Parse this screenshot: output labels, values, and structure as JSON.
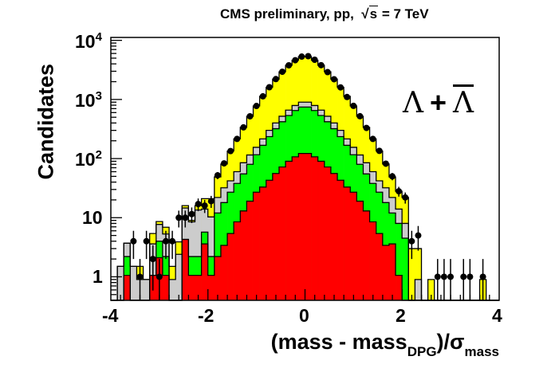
{
  "chart_data": {
    "type": "bar",
    "subtype": "stacked-histogram-log",
    "title": "CMS preliminary, pp,",
    "title_energy_symbol": "s",
    "title_energy": "= 7 TeV",
    "ylabel": "Candidates",
    "xlabel_main": "(mass - mass",
    "xlabel_sub": "DPG",
    "xlabel_after": ")/σ",
    "xlabel_sub2": "mass",
    "annotation": {
      "particle": "Λ",
      "plus": "+",
      "antiparticle": "Λ"
    },
    "xlim": [
      -4,
      4
    ],
    "ylim": [
      0.4,
      11200
    ],
    "yscale": "log",
    "bin_edges_start": -4,
    "bin_width": 0.1333,
    "x_ticks": [
      "-4",
      "-2",
      "0",
      "2",
      "4"
    ],
    "y_ticks": [
      {
        "base": "1",
        "exp": ""
      },
      {
        "base": "10",
        "exp": ""
      },
      {
        "base": "10",
        "exp": "2"
      },
      {
        "base": "10",
        "exp": "3"
      },
      {
        "base": "10",
        "exp": "4"
      }
    ],
    "colors": {
      "total": "#ffff00",
      "gray": "#cccccc",
      "green": "#00ff00",
      "red": "#ff0000",
      "data": "#000000"
    },
    "series": [
      {
        "name": "yellow-top",
        "values": [
          0,
          1.5,
          3.7,
          1.5,
          1.5,
          0.9,
          5.4,
          8.6,
          6.9,
          1.5,
          3.9,
          16,
          9,
          16,
          21,
          21,
          49,
          81,
          134,
          215,
          337,
          519,
          776,
          1130,
          1610,
          2210,
          2940,
          3780,
          4610,
          5310,
          5310,
          4610,
          3780,
          2940,
          2210,
          1610,
          1130,
          776,
          519,
          337,
          215,
          134,
          81,
          49,
          28,
          22,
          3,
          3,
          0,
          0.9,
          0,
          0,
          0,
          0,
          0,
          0,
          0,
          0.9,
          0,
          0
        ]
      },
      {
        "name": "gray-top",
        "values": [
          0,
          1.5,
          3.7,
          1.5,
          0.9,
          0.9,
          3.6,
          7.7,
          5.3,
          0.9,
          2.4,
          14.6,
          8.5,
          13.5,
          14,
          10.3,
          22,
          32,
          42,
          60,
          85,
          115,
          155,
          215,
          300,
          400,
          520,
          660,
          790,
          900,
          900,
          790,
          660,
          520,
          400,
          300,
          215,
          155,
          115,
          85,
          60,
          42,
          32,
          22,
          14,
          8,
          0.3,
          0.9,
          0,
          0,
          0,
          0,
          0,
          0,
          0,
          0,
          0,
          0,
          0,
          0
        ]
      },
      {
        "name": "green-top",
        "values": [
          0,
          0,
          2.2,
          0,
          0,
          0,
          1.06,
          4,
          2.2,
          0,
          0,
          4.3,
          2.2,
          2.2,
          5.7,
          2.2,
          12,
          18,
          27,
          38,
          55,
          80,
          116,
          168,
          235,
          320,
          420,
          535,
          650,
          745,
          745,
          650,
          535,
          420,
          320,
          235,
          168,
          116,
          80,
          55,
          38,
          27,
          18,
          12,
          8,
          4.5,
          0,
          0,
          0,
          0,
          0,
          0,
          0,
          0,
          0,
          0,
          0,
          0,
          0,
          0
        ]
      },
      {
        "name": "red",
        "values": [
          0,
          0,
          1.06,
          0,
          0,
          0,
          1.06,
          2.1,
          1.06,
          0,
          0,
          4.3,
          1.06,
          1.06,
          3.6,
          1.06,
          2.2,
          3.4,
          5.4,
          8.5,
          13,
          19,
          27,
          33,
          43,
          56,
          72,
          90,
          107,
          122,
          122,
          107,
          90,
          72,
          56,
          43,
          33,
          27,
          19,
          13,
          8.5,
          5.4,
          3.4,
          3.6,
          1.06,
          0,
          0,
          0,
          0,
          0,
          0,
          0,
          0,
          0,
          0,
          0,
          0,
          0,
          0,
          0
        ]
      },
      {
        "name": "data",
        "values": [
          null,
          null,
          null,
          4,
          1,
          4,
          2,
          1,
          4,
          4,
          10,
          10,
          11.5,
          17,
          16,
          19,
          52,
          83,
          134,
          215,
          337,
          519,
          776,
          1130,
          1610,
          2210,
          2940,
          3780,
          4610,
          5310,
          5400,
          4700,
          3800,
          2900,
          2200,
          1600,
          1100,
          780,
          520,
          330,
          215,
          135,
          82,
          50,
          28,
          22,
          4,
          5,
          null,
          null,
          1,
          1,
          1,
          null,
          1,
          1,
          null,
          1,
          null,
          null
        ]
      }
    ]
  }
}
